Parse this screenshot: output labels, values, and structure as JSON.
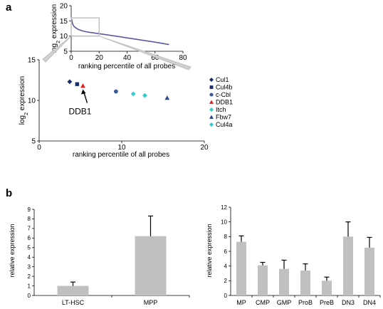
{
  "panels": {
    "a": "a",
    "b": "b"
  },
  "chart_data": [
    {
      "id": "inset",
      "type": "line",
      "xlabel": "ranking percentile of all probes",
      "ylabel": "log2 expression",
      "xlim": [
        0,
        80
      ],
      "ylim": [
        5,
        20
      ],
      "xticks": [
        0,
        20,
        40,
        60,
        80
      ],
      "yticks": [
        5,
        10,
        15,
        20
      ],
      "x": [
        0.3,
        1,
        2,
        3,
        5,
        8,
        12,
        20,
        30,
        40,
        50,
        60,
        70
      ],
      "y": [
        15.6,
        14.0,
        13.2,
        12.8,
        12.2,
        11.7,
        11.3,
        10.8,
        10.1,
        9.4,
        8.7,
        8.0,
        7.2
      ],
      "zoom_box": {
        "x": [
          0,
          20
        ],
        "y": [
          10,
          16
        ]
      }
    },
    {
      "id": "scatter",
      "type": "scatter",
      "xlabel": "ranking percentile of all probes",
      "ylabel": "log2 expression",
      "xlim": [
        0,
        20
      ],
      "ylim": [
        5,
        15
      ],
      "xticks": [
        0,
        10,
        20
      ],
      "yticks": [
        5,
        10,
        15
      ],
      "annotation": {
        "text": "DDB1"
      },
      "series": [
        {
          "name": "Cul1",
          "x": 3.7,
          "y": 12.3,
          "marker": "diamond",
          "color": "#1b2a6b"
        },
        {
          "name": "Cul4b",
          "x": 4.6,
          "y": 12.0,
          "marker": "square",
          "color": "#1b2a6b"
        },
        {
          "name": "c-Cbl",
          "x": 9.3,
          "y": 11.1,
          "marker": "circle",
          "color": "#3a5a9a"
        },
        {
          "name": "DDB1",
          "x": 5.3,
          "y": 11.8,
          "marker": "triangle",
          "color": "#e02020"
        },
        {
          "name": "Itch",
          "x": 11.4,
          "y": 10.8,
          "marker": "diamond",
          "color": "#33cccc"
        },
        {
          "name": "Fbw7",
          "x": 15.5,
          "y": 10.3,
          "marker": "triangle",
          "color": "#2a4a8a"
        },
        {
          "name": "Cul4a",
          "x": 12.8,
          "y": 10.6,
          "marker": "diamond",
          "color": "#33cccc"
        }
      ]
    },
    {
      "id": "bar1",
      "type": "bar",
      "ylabel": "relative expression",
      "ylim": [
        0,
        9
      ],
      "yticks": [
        0,
        1,
        2,
        3,
        4,
        5,
        6,
        7,
        8,
        9
      ],
      "categories": [
        "LT-HSC",
        "MPP"
      ],
      "values": [
        1.0,
        6.2
      ],
      "errors": [
        0.4,
        2.1
      ],
      "color": "#c0c0c0"
    },
    {
      "id": "bar2",
      "type": "bar",
      "ylabel": "relative expression",
      "ylim": [
        0,
        12
      ],
      "yticks": [
        0,
        2,
        4,
        6,
        8,
        10,
        12
      ],
      "categories": [
        "MP",
        "CMP",
        "GMP",
        "ProB",
        "PreB",
        "DN3",
        "DN4"
      ],
      "values": [
        7.3,
        4.1,
        3.6,
        3.4,
        2.0,
        8.0,
        6.5
      ],
      "errors": [
        0.8,
        0.4,
        1.2,
        0.9,
        0.5,
        2.0,
        1.4
      ],
      "color": "#c0c0c0"
    }
  ]
}
